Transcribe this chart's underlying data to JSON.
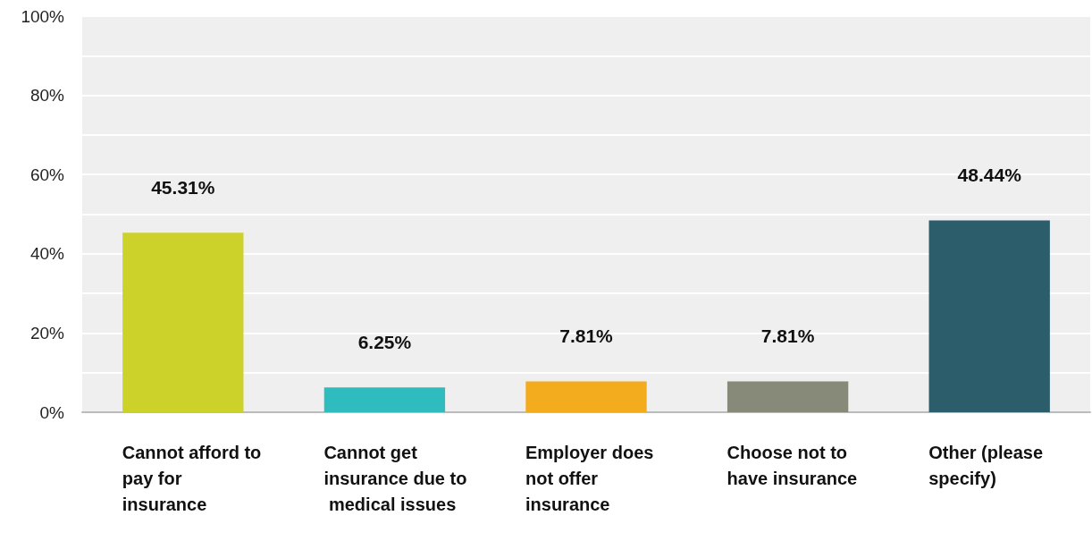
{
  "chart_data": {
    "type": "bar",
    "categories": [
      "Cannot afford to pay for insurance",
      "Cannot get insurance due to medical issues",
      "Employer does not offer insurance",
      "Choose not to have insurance",
      "Other (please specify)"
    ],
    "values": [
      45.31,
      6.25,
      7.81,
      7.81,
      48.44
    ],
    "colors": [
      "#cdd22a",
      "#2fbcbf",
      "#f4ac1f",
      "#878a78",
      "#2c5d6a"
    ],
    "value_labels": [
      "45.31%",
      "6.25%",
      "7.81%",
      "7.81%",
      "48.44%"
    ],
    "ylim": [
      0,
      100
    ],
    "yticks": [
      {
        "value": 0,
        "label": "0%"
      },
      {
        "value": 10,
        "label": null
      },
      {
        "value": 20,
        "label": "20%"
      },
      {
        "value": 30,
        "label": null
      },
      {
        "value": 40,
        "label": "40%"
      },
      {
        "value": 50,
        "label": null
      },
      {
        "value": 60,
        "label": "60%"
      },
      {
        "value": 70,
        "label": null
      },
      {
        "value": 80,
        "label": "80%"
      },
      {
        "value": 90,
        "label": null
      },
      {
        "value": 100,
        "label": "100%"
      }
    ],
    "grid": "y"
  }
}
